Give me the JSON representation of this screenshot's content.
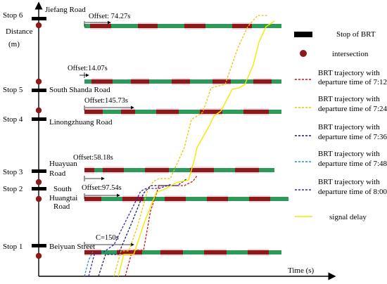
{
  "axes": {
    "y_label": [
      "Distance",
      "(m)"
    ],
    "x_label": "Time (s)"
  },
  "stops": [
    {
      "name": "Stop 6",
      "road": [
        "Jiefang Road"
      ]
    },
    {
      "name": "Stop 5",
      "road": [
        "South Shanda Road"
      ]
    },
    {
      "name": "Stop 4",
      "road": [
        "Linongzhuang Road"
      ]
    },
    {
      "name": "Stop 3",
      "road": [
        "Huayuan",
        "Road"
      ]
    },
    {
      "name": "Stop 2",
      "road": [
        "South",
        "Huangtai",
        "Road"
      ]
    },
    {
      "name": "Stop 1",
      "road": [
        "Beiyuan Street"
      ]
    }
  ],
  "offsets": [
    {
      "label": "Offset: 74.27s"
    },
    {
      "label": "Offset:14.07s"
    },
    {
      "label": "Offset:145.73s"
    },
    {
      "label": "Offset:58.18s"
    },
    {
      "label": "Offset:97.54s"
    }
  ],
  "cycle_label": "C=150s",
  "legend": {
    "items": [
      {
        "label": [
          "Stop of BRT"
        ],
        "kind": "stop"
      },
      {
        "label": [
          "intersection"
        ],
        "kind": "intersection"
      },
      {
        "label": [
          "BRT trajectory with",
          "departure time of 7:12"
        ],
        "kind": "dash",
        "color": "#cc1111"
      },
      {
        "label": [
          "BRT trajectory with",
          "departure time of 7:24"
        ],
        "kind": "dash",
        "color": "#e6c800"
      },
      {
        "label": [
          "BRT trajectory with",
          "departure time of 7:36"
        ],
        "kind": "dash",
        "color": "#1a1a6e"
      },
      {
        "label": [
          "BRT trajectory with",
          "departure time of 7:48"
        ],
        "kind": "dash",
        "color": "#2a8ad6"
      },
      {
        "label": [
          "BRT trajectory with",
          "departure time of 8:00"
        ],
        "kind": "dash",
        "color": "#3a24b0"
      },
      {
        "label": [
          "signal delay"
        ],
        "kind": "solid",
        "color": "#f2ea00"
      }
    ]
  },
  "colors": {
    "red_phase": "#8b1a1a",
    "green_phase": "#2e9a5a",
    "intersection_dot": "#8b1a1a",
    "stop_bar": "#000000"
  }
}
